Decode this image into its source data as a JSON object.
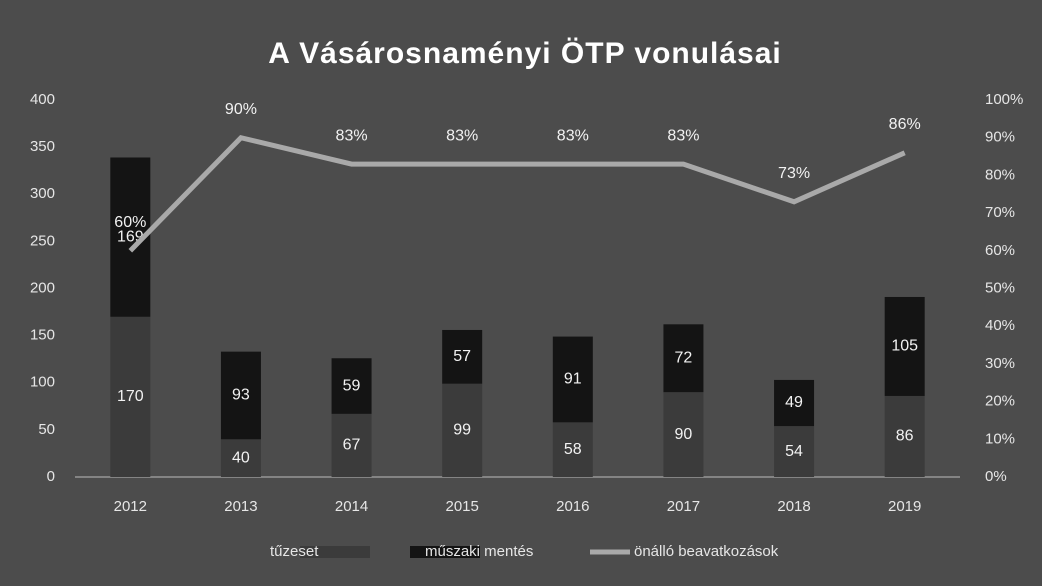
{
  "chart_data": {
    "type": "bar",
    "title": "A Vásárosnaményi ÖTP vonulásai",
    "categories": [
      "2012",
      "2013",
      "2014",
      "2015",
      "2016",
      "2017",
      "2018",
      "2019"
    ],
    "stacked": true,
    "series": [
      {
        "name": "tűzeset",
        "type": "bar",
        "color": "#3b3b3b",
        "values": [
          170,
          40,
          67,
          99,
          58,
          90,
          54,
          86
        ]
      },
      {
        "name": "műszaki mentés",
        "type": "bar",
        "color": "#141414",
        "values": [
          169,
          93,
          59,
          57,
          91,
          72,
          49,
          105
        ]
      },
      {
        "name": "önálló beavatkozások",
        "type": "line",
        "axis": "y2",
        "color": "#a9a9a9",
        "values": [
          60,
          90,
          83,
          83,
          83,
          83,
          73,
          86
        ],
        "value_labels": [
          "60%",
          "90%",
          "83%",
          "83%",
          "83%",
          "83%",
          "73%",
          "86%"
        ]
      }
    ],
    "ylim": [
      0,
      400
    ],
    "yticks": [
      0,
      50,
      100,
      150,
      200,
      250,
      300,
      350,
      400
    ],
    "y2lim": [
      0,
      100
    ],
    "y2ticks": [
      {
        "value": 0,
        "label": "0%"
      },
      {
        "value": 10,
        "label": "10%"
      },
      {
        "value": 20,
        "label": "20%"
      },
      {
        "value": 30,
        "label": "30%"
      },
      {
        "value": 40,
        "label": "40%"
      },
      {
        "value": 50,
        "label": "50%"
      },
      {
        "value": 60,
        "label": "60%"
      },
      {
        "value": 70,
        "label": "70%"
      },
      {
        "value": 80,
        "label": "80%"
      },
      {
        "value": 90,
        "label": "90%"
      },
      {
        "value": 100,
        "label": "100%"
      }
    ],
    "grid": false,
    "legend": "bottom"
  }
}
